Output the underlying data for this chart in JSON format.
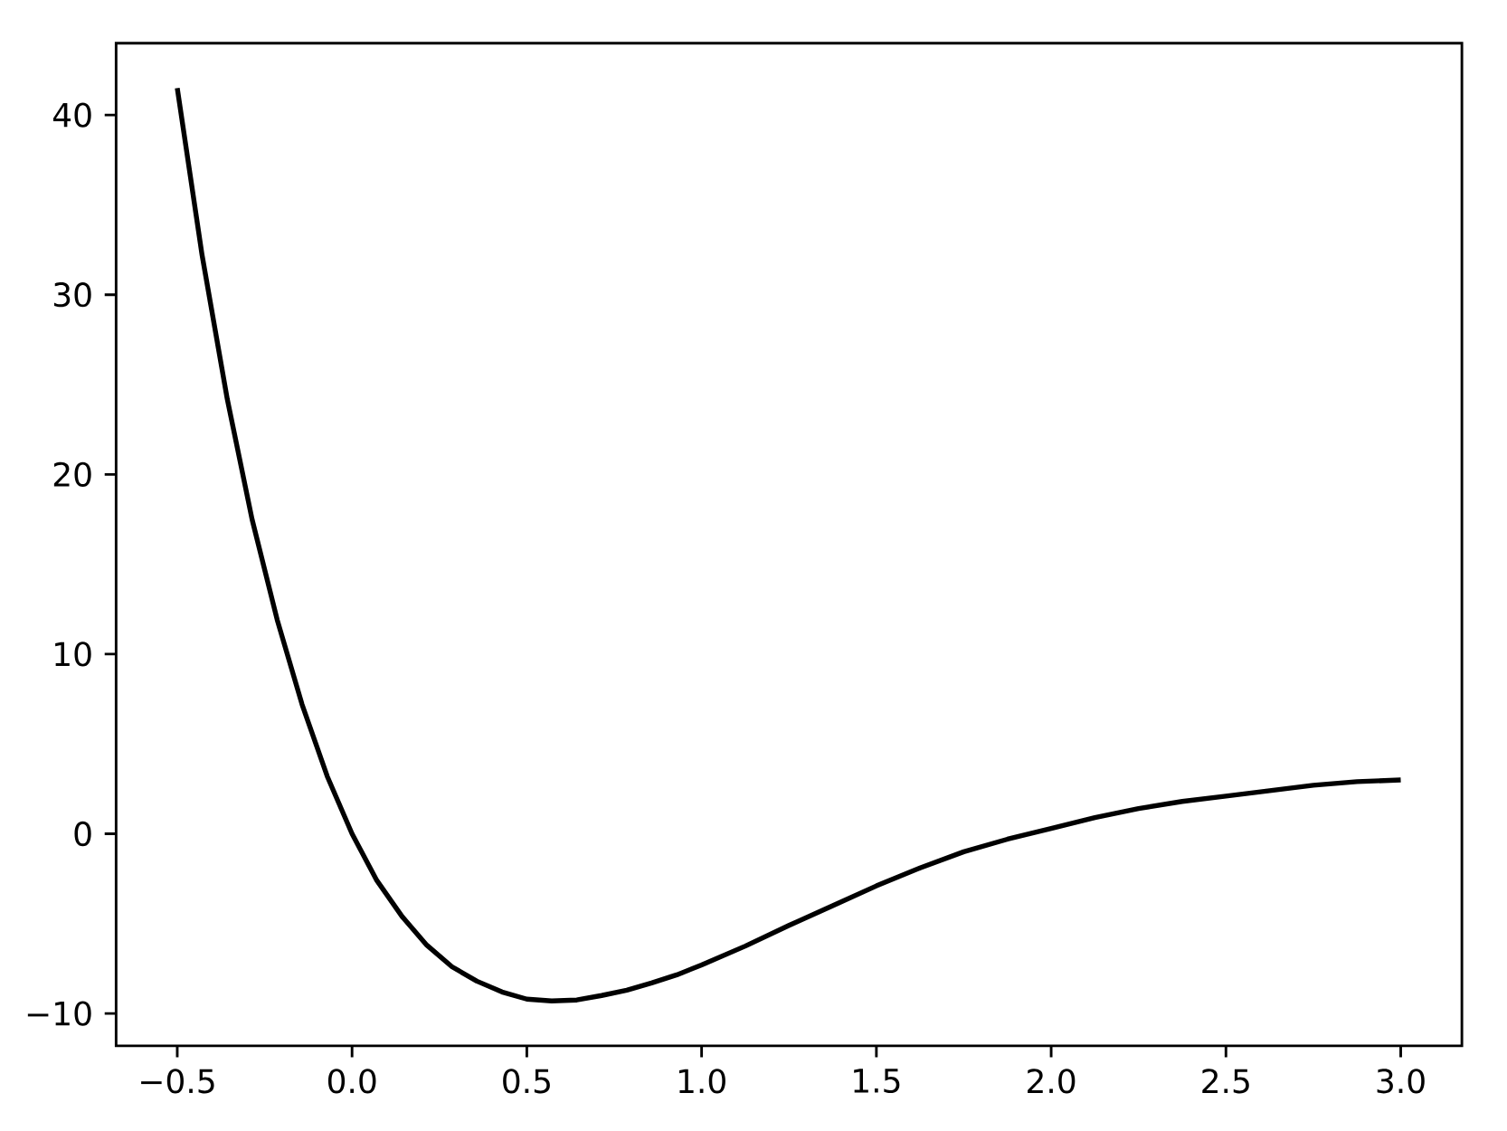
{
  "chart_data": {
    "type": "line",
    "x": [
      -0.5,
      -0.429,
      -0.357,
      -0.286,
      -0.214,
      -0.143,
      -0.071,
      0,
      0.071,
      0.143,
      0.214,
      0.286,
      0.357,
      0.429,
      0.5,
      0.571,
      0.643,
      0.714,
      0.786,
      0.857,
      0.929,
      1.0,
      1.125,
      1.25,
      1.375,
      1.5,
      1.625,
      1.75,
      1.875,
      2.0,
      2.125,
      2.25,
      2.375,
      2.5,
      2.625,
      2.75,
      2.875,
      3.0
    ],
    "series": [
      {
        "color": "#000000",
        "values": [
          41.5,
          32.2,
          24.2,
          17.5,
          11.9,
          7.2,
          3.2,
          0,
          -2.6,
          -4.6,
          -6.2,
          -7.4,
          -8.2,
          -8.8,
          -9.2,
          -9.3,
          -9.25,
          -9.0,
          -8.7,
          -8.3,
          -7.85,
          -7.3,
          -6.25,
          -5.1,
          -4.0,
          -2.9,
          -1.9,
          -1.0,
          -0.3,
          0.3,
          0.9,
          1.4,
          1.8,
          2.1,
          2.4,
          2.7,
          2.9,
          3.0
        ]
      }
    ],
    "xlim": [
      -0.675,
      3.175
    ],
    "ylim": [
      -11.8,
      44.0
    ],
    "xticks": [
      {
        "value": -0.5,
        "label": "−0.5"
      },
      {
        "value": 0,
        "label": "0.0"
      },
      {
        "value": 0.5,
        "label": "0.5"
      },
      {
        "value": 1,
        "label": "1.0"
      },
      {
        "value": 1.5,
        "label": "1.5"
      },
      {
        "value": 2,
        "label": "2.0"
      },
      {
        "value": 2.5,
        "label": "2.5"
      },
      {
        "value": 3,
        "label": "3.0"
      }
    ],
    "yticks": [
      {
        "value": -10,
        "label": "−10"
      },
      0,
      10,
      20,
      30,
      40
    ],
    "grid": false,
    "marker": "none",
    "line_style": "solid"
  }
}
